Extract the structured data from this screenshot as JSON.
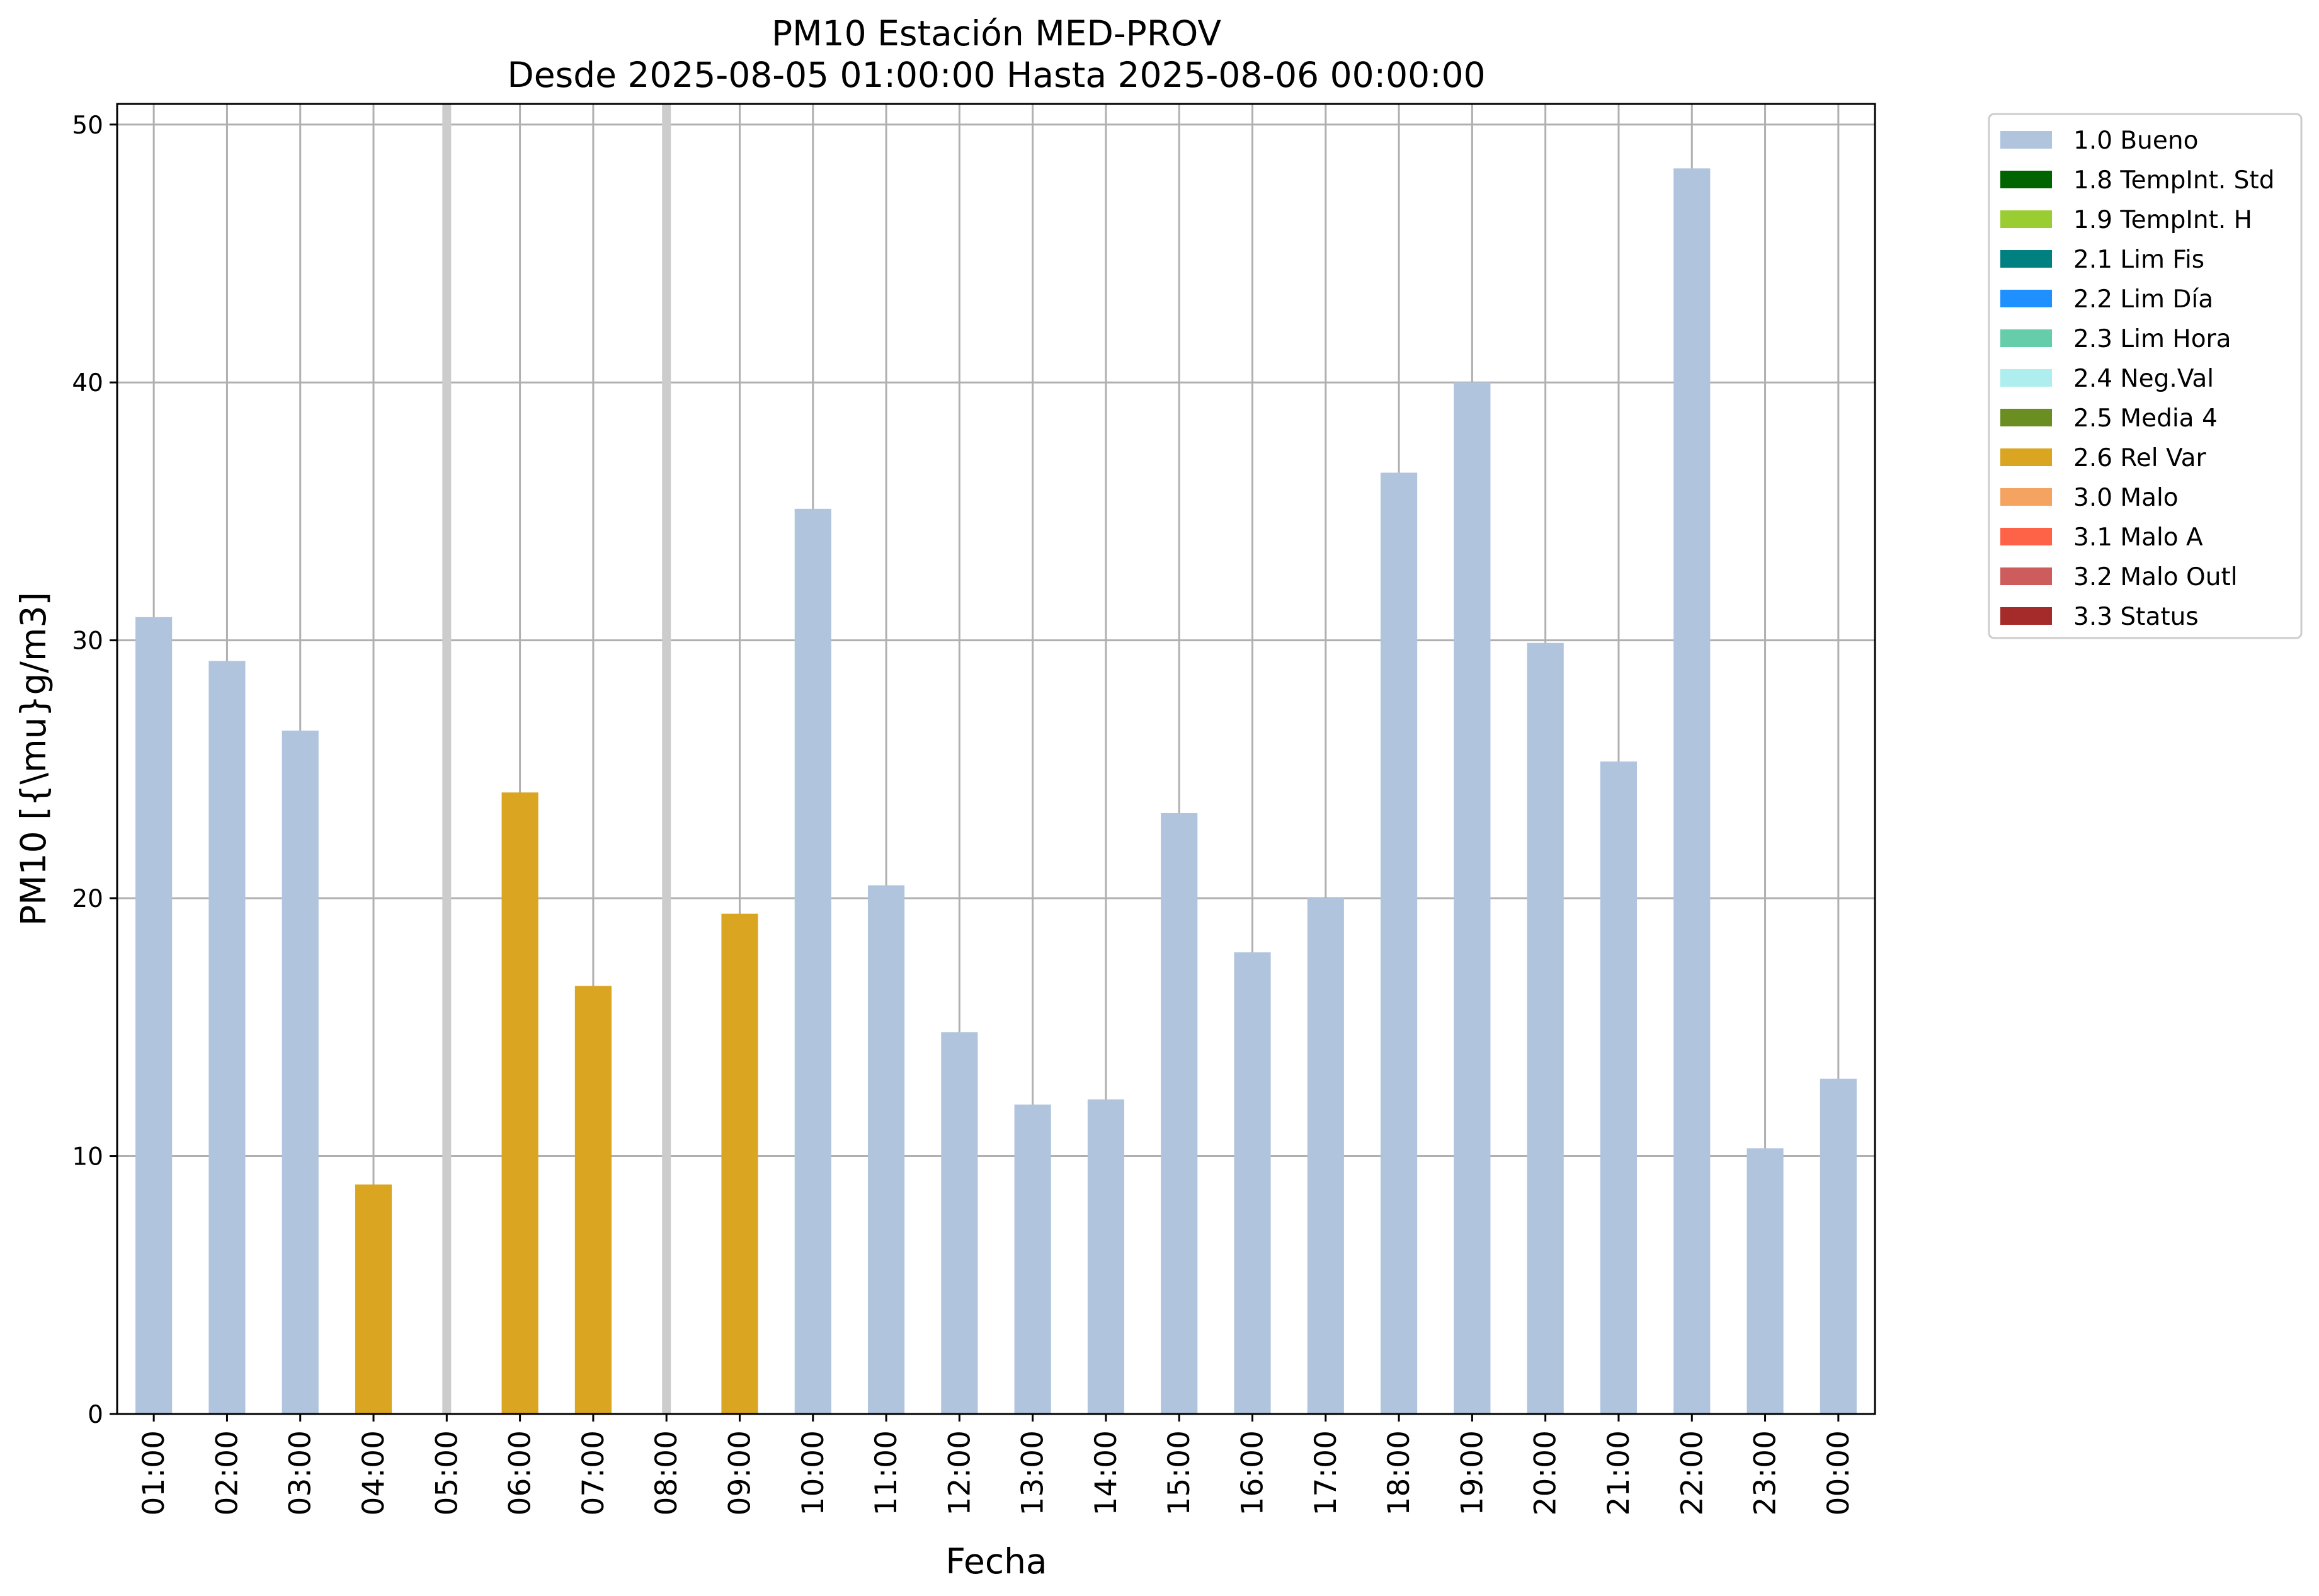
{
  "chart_data": {
    "type": "bar",
    "title_line1": "PM10 Estación MED-PROV",
    "title_line2": "Desde 2025-08-05 01:00:00 Hasta 2025-08-06 00:00:00",
    "xlabel": "Fecha",
    "ylabel": "PM10 [{\\mu}g/m3]",
    "ylim": [
      0,
      50.8
    ],
    "yticks": [
      0,
      10,
      20,
      30,
      40,
      50
    ],
    "grid": true,
    "legend_position": "outside-right-top",
    "categories": [
      "01:00",
      "02:00",
      "03:00",
      "04:00",
      "05:00",
      "06:00",
      "07:00",
      "08:00",
      "09:00",
      "10:00",
      "11:00",
      "12:00",
      "13:00",
      "14:00",
      "15:00",
      "16:00",
      "17:00",
      "18:00",
      "19:00",
      "20:00",
      "21:00",
      "22:00",
      "23:00",
      "00:00"
    ],
    "values": [
      30.9,
      29.2,
      26.5,
      8.9,
      null,
      24.1,
      16.6,
      null,
      19.4,
      35.1,
      20.5,
      14.8,
      12.0,
      12.2,
      23.3,
      17.9,
      20.0,
      36.5,
      40.0,
      29.9,
      25.3,
      48.3,
      10.3,
      13.0
    ],
    "flags": [
      "1.0 Bueno",
      "1.0 Bueno",
      "1.0 Bueno",
      "2.6 Rel Var",
      null,
      "2.6 Rel Var",
      "2.6 Rel Var",
      null,
      "2.6 Rel Var",
      "1.0 Bueno",
      "1.0 Bueno",
      "1.0 Bueno",
      "1.0 Bueno",
      "1.0 Bueno",
      "1.0 Bueno",
      "1.0 Bueno",
      "1.0 Bueno",
      "1.0 Bueno",
      "1.0 Bueno",
      "1.0 Bueno",
      "1.0 Bueno",
      "1.0 Bueno",
      "1.0 Bueno",
      "1.0 Bueno"
    ],
    "missing_markers": [
      "05:00",
      "08:00"
    ],
    "legend": [
      {
        "label": "1.0 Bueno",
        "color": "#b0c4de"
      },
      {
        "label": "1.8 TempInt. Std",
        "color": "#006400"
      },
      {
        "label": "1.9 TempInt. H",
        "color": "#9acd32"
      },
      {
        "label": "2.1 Lim Fis",
        "color": "#008080"
      },
      {
        "label": "2.2 Lim Día",
        "color": "#1e90ff"
      },
      {
        "label": "2.3 Lim Hora",
        "color": "#66cdaa"
      },
      {
        "label": "2.4 Neg.Val",
        "color": "#afeeee"
      },
      {
        "label": "2.5 Media 4",
        "color": "#6b8e23"
      },
      {
        "label": "2.6 Rel Var",
        "color": "#daa520"
      },
      {
        "label": "3.0 Malo",
        "color": "#f4a460"
      },
      {
        "label": "3.1 Malo A",
        "color": "#ff6347"
      },
      {
        "label": "3.2 Malo Outl",
        "color": "#cd5c5c"
      },
      {
        "label": "3.3 Status",
        "color": "#a52a2a"
      }
    ],
    "grid_color": "#b0b0b0",
    "missing_marker_color": "#cccccc"
  }
}
